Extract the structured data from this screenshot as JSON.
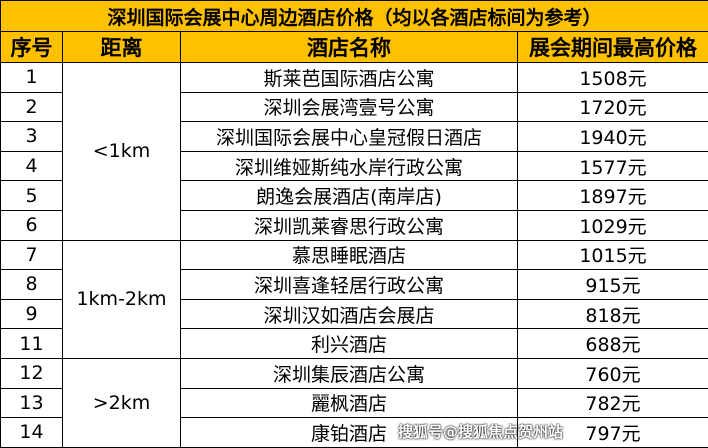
{
  "title": "深圳国际会展中心周边酒店价格（均以各酒店标间为参考）",
  "headers": [
    "序号",
    "距离",
    "酒店名称",
    "展会期间最高价格"
  ],
  "groups": [
    {
      "distance": "<1km"
    },
    {
      "distance": "1km-2km"
    },
    {
      "distance": ">2km"
    }
  ],
  "rows": [
    {
      "no": "1",
      "name": "斯莱芭国际酒店公寓",
      "price": "1508元"
    },
    {
      "no": "2",
      "name": "深圳会展湾壹号公寓",
      "price": "1720元"
    },
    {
      "no": "3",
      "name": "深圳国际会展中心皇冠假日酒店",
      "price": "1940元"
    },
    {
      "no": "4",
      "name": "深圳维娅斯纯水岸行政公寓",
      "price": "1577元"
    },
    {
      "no": "5",
      "name": "朗逸会展酒店(南岸店)",
      "price": "1897元"
    },
    {
      "no": "6",
      "name": "深圳凯莱睿思行政公寓",
      "price": "1029元"
    },
    {
      "no": "7",
      "name": "慕思睡眠酒店",
      "price": "1015元"
    },
    {
      "no": "8",
      "name": "深圳喜逢轻居行政公寓",
      "price": "915元"
    },
    {
      "no": "9",
      "name": "深圳汉如酒店会展店",
      "price": "818元"
    },
    {
      "no": "11",
      "name": "利兴酒店",
      "price": "688元"
    },
    {
      "no": "12",
      "name": "深圳集辰酒店公寓",
      "price": "760元"
    },
    {
      "no": "13",
      "name": "麗枫酒店",
      "price": "782元"
    },
    {
      "no": "14",
      "name": "康铂酒店",
      "price": "797元"
    }
  ],
  "watermark": "搜狐号@搜狐焦点贺州站",
  "colors": {
    "header_bg": "#FFC000"
  }
}
